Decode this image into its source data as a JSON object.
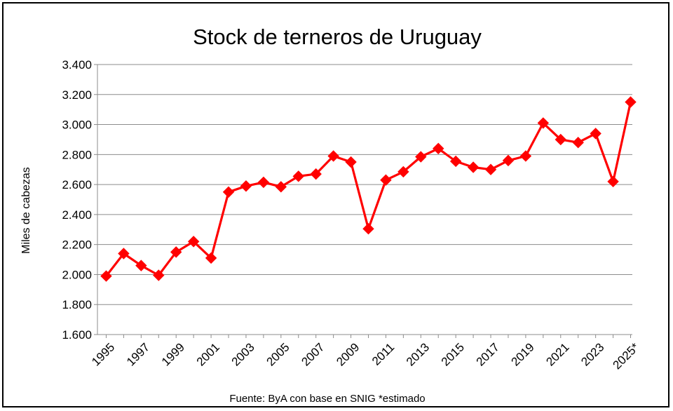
{
  "chart_data": {
    "type": "line",
    "title": "Stock de terneros de Uruguay",
    "xlabel": "",
    "ylabel": "Miles de cabezas",
    "source_note": "Fuente: ByA con base en SNIG *estimado",
    "ylim": [
      1600,
      3400
    ],
    "y_ticks": [
      "1.600",
      "1.800",
      "2.000",
      "2.200",
      "2.400",
      "2.600",
      "2.800",
      "3.000",
      "3.200",
      "3.400"
    ],
    "y_tick_values": [
      1600,
      1800,
      2000,
      2200,
      2400,
      2600,
      2800,
      3000,
      3200,
      3400
    ],
    "x": [
      "1995",
      "1996",
      "1997",
      "1998",
      "1999",
      "2000",
      "2001",
      "2002",
      "2003",
      "2004",
      "2005",
      "2006",
      "2007",
      "2008",
      "2009",
      "2010",
      "2011",
      "2012",
      "2013",
      "2014",
      "2015",
      "2016",
      "2017",
      "2018",
      "2019",
      "2020",
      "2021",
      "2022",
      "2023",
      "2024",
      "2025*"
    ],
    "x_tick_labels": [
      "1995",
      "1997",
      "1999",
      "2001",
      "2003",
      "2005",
      "2007",
      "2009",
      "2011",
      "2013",
      "2015",
      "2017",
      "2019",
      "2021",
      "2023",
      "2025*"
    ],
    "series": [
      {
        "values": [
          1990,
          2140,
          2060,
          1995,
          2150,
          2220,
          2110,
          2550,
          2590,
          2615,
          2585,
          2655,
          2670,
          2790,
          2750,
          2305,
          2630,
          2685,
          2785,
          2840,
          2755,
          2715,
          2700,
          2760,
          2790,
          3010,
          2900,
          2880,
          2940,
          2620,
          3150
        ],
        "color": "#ff0000",
        "marker": "diamond"
      }
    ],
    "grid": true,
    "legend": "none"
  }
}
